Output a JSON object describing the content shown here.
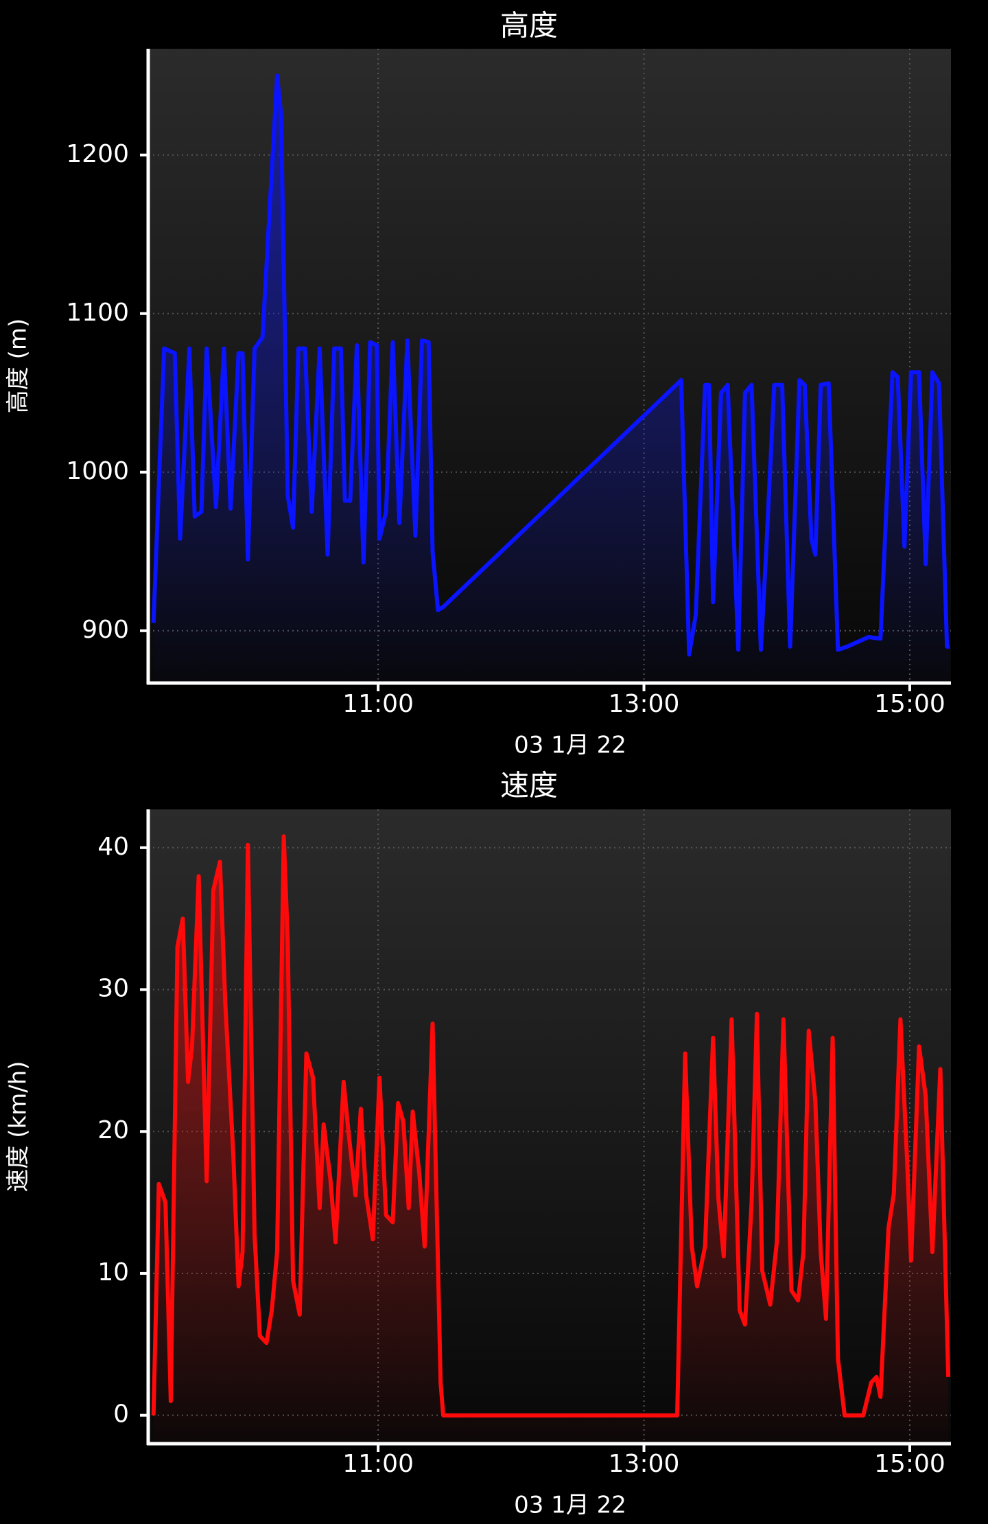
{
  "chart_data": [
    {
      "type": "line",
      "title": "高度",
      "y_label": "高度 (m)",
      "x_label": "03 1月 22",
      "color": "#0a14ff",
      "grid": true,
      "xlim": [
        9.27,
        15.31
      ],
      "xticks": [
        {
          "value": 11,
          "label": "11:00"
        },
        {
          "value": 13,
          "label": "13:00"
        },
        {
          "value": 15,
          "label": "15:00"
        }
      ],
      "ylim": [
        867,
        1267
      ],
      "yticks": [
        900,
        1000,
        1100,
        1200
      ],
      "x": [
        9.31,
        9.39,
        9.47,
        9.51,
        9.58,
        9.62,
        9.67,
        9.71,
        9.78,
        9.84,
        9.89,
        9.95,
        9.98,
        10.02,
        10.07,
        10.13,
        10.24,
        10.27,
        10.32,
        10.36,
        10.4,
        10.45,
        10.5,
        10.56,
        10.62,
        10.67,
        10.72,
        10.75,
        10.79,
        10.84,
        10.89,
        10.94,
        10.99,
        11.01,
        11.06,
        11.11,
        11.16,
        11.22,
        11.28,
        11.33,
        11.38,
        11.41,
        11.45,
        11.49,
        13.28,
        13.34,
        13.39,
        13.46,
        13.49,
        13.52,
        13.58,
        13.63,
        13.71,
        13.76,
        13.81,
        13.88,
        13.92,
        13.98,
        14.04,
        14.1,
        14.17,
        14.21,
        14.26,
        14.29,
        14.33,
        14.39,
        14.46,
        14.53,
        14.69,
        14.78,
        14.87,
        14.91,
        14.96,
        15.01,
        15.07,
        15.12,
        15.17,
        15.22,
        15.28,
        15.3
      ],
      "values": [
        905,
        1078,
        1075,
        958,
        1078,
        972,
        975,
        1078,
        978,
        1078,
        977,
        1075,
        1075,
        945,
        1078,
        1085,
        1250,
        1225,
        985,
        965,
        1078,
        1078,
        975,
        1078,
        948,
        1078,
        1078,
        982,
        982,
        1080,
        943,
        1082,
        1080,
        958,
        975,
        1082,
        968,
        1083,
        960,
        1083,
        1082,
        950,
        913,
        915,
        1058,
        885,
        910,
        1055,
        1055,
        918,
        1050,
        1055,
        888,
        1050,
        1055,
        888,
        950,
        1055,
        1055,
        890,
        1058,
        1055,
        958,
        948,
        1055,
        1056,
        888,
        890,
        896,
        895,
        1063,
        1060,
        953,
        1063,
        1063,
        942,
        1063,
        1056,
        890,
        890
      ]
    },
    {
      "type": "line",
      "title": "速度",
      "y_label": "速度 (km/h)",
      "x_label": "03 1月 22",
      "color": "#ff0a0a",
      "grid": true,
      "xlim": [
        9.27,
        15.31
      ],
      "xticks": [
        {
          "value": 11,
          "label": "11:00"
        },
        {
          "value": 13,
          "label": "13:00"
        },
        {
          "value": 15,
          "label": "15:00"
        }
      ],
      "ylim": [
        -2,
        42.7
      ],
      "yticks": [
        0,
        10,
        20,
        30,
        40
      ],
      "x": [
        9.31,
        9.35,
        9.4,
        9.44,
        9.49,
        9.53,
        9.57,
        9.6,
        9.65,
        9.71,
        9.76,
        9.81,
        9.85,
        9.91,
        9.95,
        9.98,
        10.02,
        10.07,
        10.11,
        10.16,
        10.2,
        10.24,
        10.29,
        10.32,
        10.36,
        10.41,
        10.46,
        10.51,
        10.56,
        10.59,
        10.64,
        10.68,
        10.74,
        10.78,
        10.83,
        10.87,
        10.91,
        10.96,
        11.01,
        11.06,
        11.11,
        11.15,
        11.19,
        11.23,
        11.26,
        11.31,
        11.35,
        11.41,
        11.47,
        11.49,
        13.25,
        13.31,
        13.36,
        13.4,
        13.46,
        13.52,
        13.56,
        13.6,
        13.66,
        13.72,
        13.76,
        13.81,
        13.85,
        13.89,
        13.95,
        14.0,
        14.05,
        14.11,
        14.16,
        14.2,
        14.24,
        14.29,
        14.33,
        14.37,
        14.42,
        14.46,
        14.51,
        14.65,
        14.71,
        14.75,
        14.78,
        14.84,
        14.88,
        14.93,
        14.98,
        15.01,
        15.07,
        15.12,
        15.17,
        15.23,
        15.29
      ],
      "values": [
        0,
        16.3,
        15,
        1,
        33,
        35,
        23.5,
        26,
        38,
        16.5,
        37,
        39,
        29,
        18.4,
        9.1,
        11.5,
        40.2,
        12.8,
        5.6,
        5.1,
        7.4,
        11.5,
        40.8,
        33.4,
        9.5,
        7.1,
        25.5,
        23.8,
        14.6,
        20.5,
        16.7,
        12.2,
        23.5,
        19.7,
        15.5,
        21.6,
        15.5,
        12.4,
        23.8,
        14.1,
        13.6,
        22,
        20.7,
        14.6,
        21.4,
        17,
        11.9,
        27.6,
        2.3,
        0,
        0,
        25.5,
        11.9,
        9.1,
        11.9,
        26.6,
        15.3,
        11.2,
        27.9,
        7.4,
        6.4,
        14.9,
        28.3,
        10.2,
        7.8,
        12.2,
        27.9,
        8.8,
        8.1,
        11.5,
        27.1,
        22.1,
        11.5,
        6.8,
        26.6,
        4,
        0,
        0,
        2.3,
        2.7,
        1.3,
        13.2,
        15.6,
        27.9,
        18,
        10.9,
        26,
        22.5,
        11.5,
        24.4,
        2.7
      ]
    }
  ]
}
